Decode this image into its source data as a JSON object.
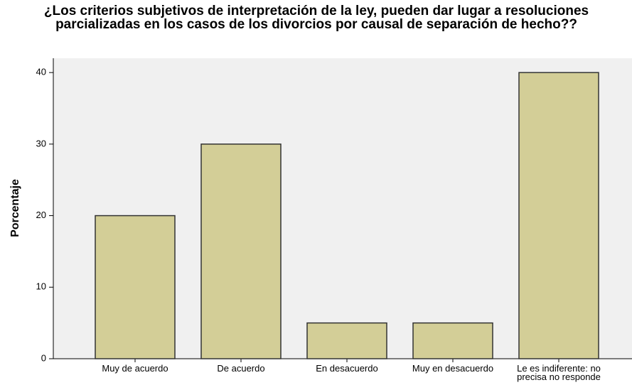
{
  "chart_data": {
    "type": "bar",
    "title": "¿Los criterios subjetivos de interpretación de la ley, pueden dar lugar a resoluciones parcializadas en los casos de los divorcios por causal de separación de hecho??",
    "ylabel": "Porcentaje",
    "categories": [
      "Muy de acuerdo",
      "De acuerdo",
      "En desacuerdo",
      "Muy en desacuerdo",
      "Le es indiferente: no precisa no responde"
    ],
    "values": [
      20,
      30,
      5,
      5,
      40
    ],
    "color": "#d3ce97",
    "ylim": [
      0,
      42
    ],
    "yticks": [
      0,
      10,
      20,
      30,
      40
    ]
  }
}
